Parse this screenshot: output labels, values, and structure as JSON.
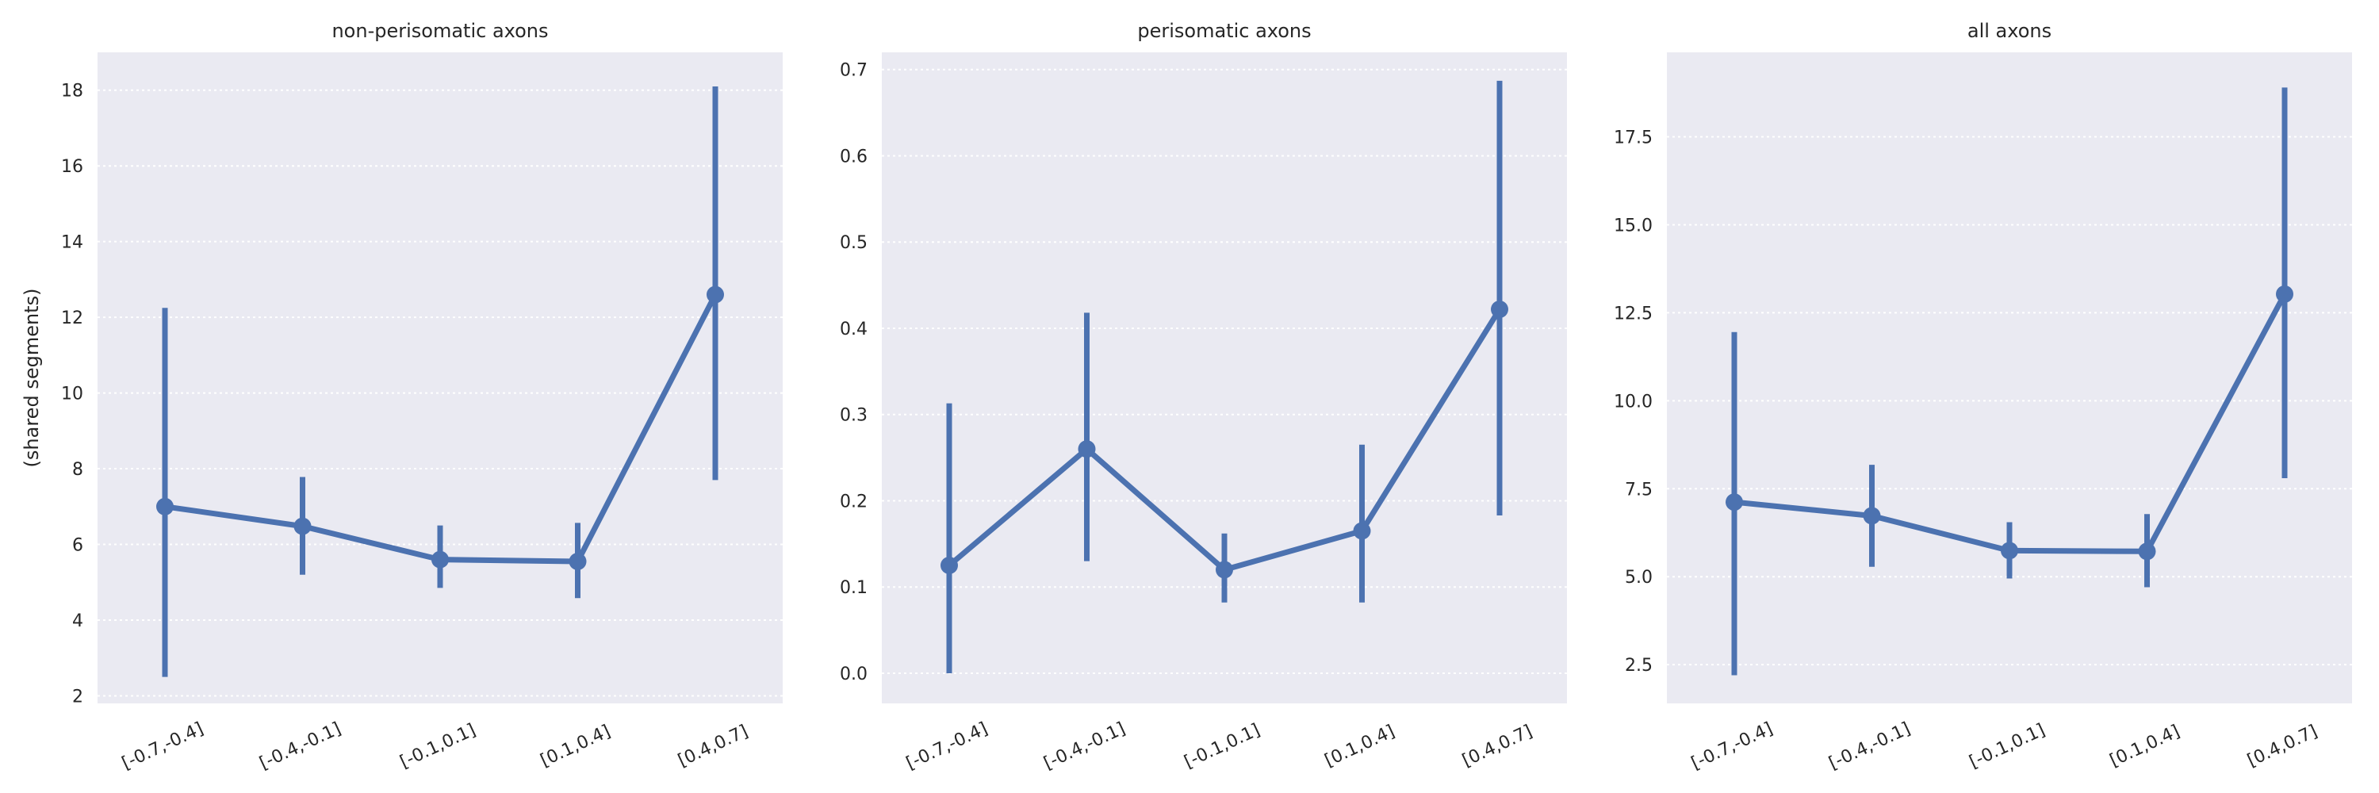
{
  "chart_data": [
    {
      "type": "line",
      "title": "non-perisomatic axons",
      "ylabel": "(shared segments)",
      "xlabel": "",
      "categories": [
        "[-0.7,-0.4]",
        "[-0.4,-0.1]",
        "[-0.1,0.1]",
        "[0.1,0.4]",
        "[0.4,0.7]"
      ],
      "series": [
        {
          "values": [
            7.0,
            6.48,
            5.6,
            5.55,
            12.6
          ],
          "ci_low": [
            2.5,
            5.2,
            4.85,
            4.58,
            7.7
          ],
          "ci_high": [
            12.25,
            7.78,
            6.5,
            6.57,
            18.1
          ]
        }
      ],
      "ylim": [
        1.8,
        19.0
      ],
      "yticks": [
        2,
        4,
        6,
        8,
        10,
        12,
        14,
        16,
        18
      ],
      "ytick_labels": [
        "2",
        "4",
        "6",
        "8",
        "10",
        "12",
        "14",
        "16",
        "18"
      ],
      "grid": true,
      "color": "#4c72b0"
    },
    {
      "type": "line",
      "title": "perisomatic axons",
      "ylabel": "",
      "xlabel": "",
      "categories": [
        "[-0.7,-0.4]",
        "[-0.4,-0.1]",
        "[-0.1,0.1]",
        "[0.1,0.4]",
        "[0.4,0.7]"
      ],
      "series": [
        {
          "values": [
            0.125,
            0.26,
            0.12,
            0.165,
            0.422
          ],
          "ci_low": [
            0.0,
            0.13,
            0.082,
            0.082,
            0.183
          ],
          "ci_high": [
            0.313,
            0.418,
            0.162,
            0.265,
            0.687
          ]
        }
      ],
      "ylim": [
        -0.035,
        0.72
      ],
      "yticks": [
        0.0,
        0.1,
        0.2,
        0.3,
        0.4,
        0.5,
        0.6,
        0.7
      ],
      "ytick_labels": [
        "0.0",
        "0.1",
        "0.2",
        "0.3",
        "0.4",
        "0.5",
        "0.6",
        "0.7"
      ],
      "grid": true,
      "color": "#4c72b0"
    },
    {
      "type": "line",
      "title": "all axons",
      "ylabel": "",
      "xlabel": "",
      "categories": [
        "[-0.7,-0.4]",
        "[-0.4,-0.1]",
        "[-0.1,0.1]",
        "[0.1,0.4]",
        "[0.4,0.7]"
      ],
      "series": [
        {
          "values": [
            7.12,
            6.73,
            5.74,
            5.72,
            13.03
          ],
          "ci_low": [
            2.2,
            5.28,
            4.95,
            4.7,
            7.8
          ],
          "ci_high": [
            11.95,
            8.18,
            6.55,
            6.78,
            18.9
          ]
        }
      ],
      "ylim": [
        1.4,
        19.9
      ],
      "yticks": [
        2.5,
        5.0,
        7.5,
        10.0,
        12.5,
        15.0,
        17.5
      ],
      "ytick_labels": [
        "2.5",
        "5.0",
        "7.5",
        "10.0",
        "12.5",
        "15.0",
        "17.5"
      ],
      "grid": true,
      "color": "#4c72b0"
    }
  ]
}
